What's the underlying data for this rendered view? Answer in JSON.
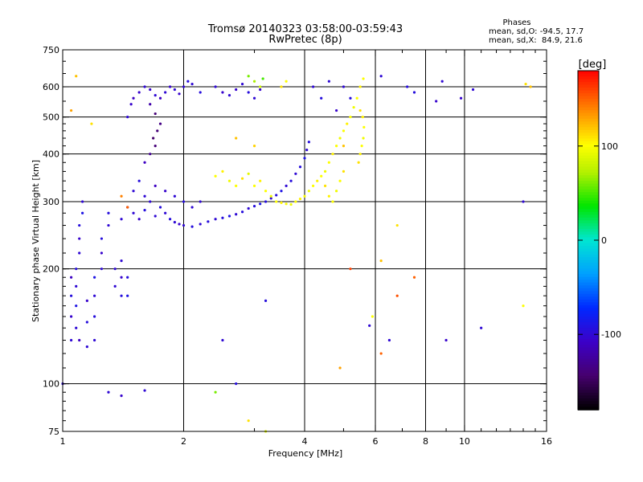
{
  "chart_data": {
    "type": "scatter",
    "title": "Tromsø 20140323 03:58:00-03:59:43",
    "subtitle": "RwPretec (8p)",
    "xlabel": "Frequency [MHz]",
    "ylabel": "Stationary phase Virtual Height [km]",
    "x_scale": "log",
    "y_scale": "log",
    "xlim": [
      1,
      16
    ],
    "ylim": [
      75,
      750
    ],
    "x_ticks": [
      1,
      2,
      4,
      6,
      8,
      10,
      16
    ],
    "x_tick_labels": [
      "1",
      "2",
      "4",
      "6",
      "8",
      "10",
      "16"
    ],
    "x_minor_ticks": [
      3,
      5,
      7,
      9,
      11,
      12,
      13,
      14,
      15
    ],
    "y_ticks": [
      75,
      100,
      200,
      300,
      400,
      500,
      600,
      750
    ],
    "y_tick_labels": [
      "75",
      "100",
      "200",
      "300",
      "400",
      "500",
      "600",
      "750"
    ],
    "grid": true,
    "phase_stats": {
      "heading": "Phases",
      "o_line": "mean, sd,O: -94.5, 17.7",
      "x_line": "mean, sd,X:  84.9, 21.6"
    },
    "colorbar": {
      "label": "[deg]",
      "range": [
        -180,
        180
      ],
      "ticks": [
        100,
        0,
        -100
      ],
      "tick_labels": [
        "100",
        "0",
        "-100"
      ]
    },
    "series": [
      {
        "component": "O-mode",
        "points": [
          [
            1.05,
            130,
            -100
          ],
          [
            1.05,
            150,
            -105
          ],
          [
            1.05,
            170,
            -95
          ],
          [
            1.05,
            190,
            -110
          ],
          [
            1.08,
            140,
            -100
          ],
          [
            1.08,
            160,
            -90
          ],
          [
            1.08,
            180,
            -100
          ],
          [
            1.08,
            200,
            -95
          ],
          [
            1.1,
            220,
            -100
          ],
          [
            1.1,
            240,
            -105
          ],
          [
            1.1,
            260,
            -95
          ],
          [
            1.12,
            280,
            -90
          ],
          [
            1.12,
            300,
            -100
          ],
          [
            1.1,
            130,
            -110
          ],
          [
            1.15,
            125,
            -100
          ],
          [
            1.15,
            145,
            -95
          ],
          [
            1.15,
            165,
            -105
          ],
          [
            1.2,
            130,
            -100
          ],
          [
            1.2,
            150,
            -95
          ],
          [
            1.2,
            170,
            -100
          ],
          [
            1.2,
            190,
            -90
          ],
          [
            1.25,
            200,
            -100
          ],
          [
            1.25,
            220,
            -105
          ],
          [
            1.25,
            240,
            -95
          ],
          [
            1.3,
            260,
            -100
          ],
          [
            1.3,
            280,
            -95
          ],
          [
            1.35,
            200,
            -100
          ],
          [
            1.35,
            180,
            -100
          ],
          [
            1.4,
            170,
            -95
          ],
          [
            1.4,
            190,
            -105
          ],
          [
            1.4,
            210,
            -100
          ],
          [
            1.45,
            170,
            -90
          ],
          [
            1.45,
            190,
            -95
          ],
          [
            1.4,
            270,
            -100
          ],
          [
            1.45,
            290,
            -95
          ],
          [
            1.5,
            280,
            -100
          ],
          [
            1.55,
            270,
            -105
          ],
          [
            1.6,
            285,
            -95
          ],
          [
            1.65,
            300,
            -100
          ],
          [
            1.7,
            275,
            -100
          ],
          [
            1.75,
            290,
            -95
          ],
          [
            1.8,
            280,
            -100
          ],
          [
            1.85,
            270,
            -95
          ],
          [
            1.9,
            265,
            -100
          ],
          [
            1.95,
            262,
            -105
          ],
          [
            2.0,
            260,
            -100
          ],
          [
            2.1,
            258,
            -95
          ],
          [
            2.2,
            262,
            -100
          ],
          [
            2.3,
            266,
            -95
          ],
          [
            2.4,
            270,
            -100
          ],
          [
            2.5,
            272,
            -95
          ],
          [
            2.6,
            275,
            -90
          ],
          [
            2.7,
            278,
            -100
          ],
          [
            2.8,
            282,
            -95
          ],
          [
            2.9,
            288,
            -100
          ],
          [
            3.0,
            292,
            -95
          ],
          [
            3.1,
            296,
            -90
          ],
          [
            3.2,
            300,
            -95
          ],
          [
            3.3,
            306,
            -100
          ],
          [
            3.4,
            312,
            -95
          ],
          [
            3.5,
            320,
            -90
          ],
          [
            3.6,
            330,
            -100
          ],
          [
            3.7,
            340,
            -95
          ],
          [
            3.8,
            355,
            -100
          ],
          [
            3.9,
            370,
            -95
          ],
          [
            4.0,
            390,
            -90
          ],
          [
            4.05,
            410,
            -100
          ],
          [
            4.1,
            430,
            -95
          ],
          [
            1.5,
            320,
            -100
          ],
          [
            1.55,
            340,
            -95
          ],
          [
            1.6,
            310,
            -100
          ],
          [
            1.7,
            330,
            -110
          ],
          [
            1.8,
            320,
            -105
          ],
          [
            1.9,
            310,
            -100
          ],
          [
            2.0,
            300,
            -95
          ],
          [
            2.1,
            290,
            -100
          ],
          [
            2.2,
            300,
            -100
          ],
          [
            1.6,
            380,
            -110
          ],
          [
            1.65,
            400,
            -130
          ],
          [
            1.7,
            420,
            -140
          ],
          [
            1.68,
            440,
            -145
          ],
          [
            1.72,
            460,
            -140
          ],
          [
            1.75,
            480,
            -135
          ],
          [
            1.7,
            510,
            -140
          ],
          [
            1.65,
            540,
            -120
          ],
          [
            1.5,
            560,
            -110
          ],
          [
            1.55,
            580,
            -105
          ],
          [
            1.6,
            600,
            -100
          ],
          [
            1.65,
            590,
            -105
          ],
          [
            1.7,
            570,
            -100
          ],
          [
            1.75,
            560,
            -110
          ],
          [
            1.8,
            580,
            -100
          ],
          [
            1.85,
            600,
            -105
          ],
          [
            1.9,
            590,
            -100
          ],
          [
            1.95,
            575,
            -105
          ],
          [
            2.0,
            600,
            -100
          ],
          [
            2.05,
            620,
            -95
          ],
          [
            2.1,
            610,
            -100
          ],
          [
            2.2,
            580,
            -95
          ],
          [
            2.4,
            600,
            -100
          ],
          [
            2.5,
            580,
            -105
          ],
          [
            2.6,
            570,
            -100
          ],
          [
            2.7,
            590,
            -105
          ],
          [
            2.8,
            610,
            -100
          ],
          [
            2.9,
            580,
            -95
          ],
          [
            3.0,
            560,
            -100
          ],
          [
            3.1,
            590,
            -105
          ],
          [
            1.45,
            500,
            -100
          ],
          [
            1.48,
            540,
            -105
          ],
          [
            4.2,
            600,
            -100
          ],
          [
            4.4,
            560,
            -95
          ],
          [
            4.6,
            620,
            -100
          ],
          [
            4.8,
            520,
            -105
          ],
          [
            5.0,
            600,
            -100
          ],
          [
            5.2,
            560,
            -95
          ],
          [
            6.2,
            640,
            -100
          ],
          [
            7.2,
            600,
            -95
          ],
          [
            8.8,
            620,
            -100
          ],
          [
            9.8,
            560,
            -105
          ],
          [
            10.5,
            590,
            -100
          ],
          [
            7.5,
            580,
            -95
          ],
          [
            8.5,
            550,
            -105
          ],
          [
            14.0,
            300,
            -100
          ],
          [
            1.0,
            100,
            -100
          ],
          [
            1.3,
            95,
            -100
          ],
          [
            1.4,
            93,
            -105
          ],
          [
            1.6,
            96,
            -100
          ],
          [
            2.5,
            130,
            -100
          ],
          [
            2.7,
            100,
            -95
          ],
          [
            3.2,
            165,
            -95
          ],
          [
            5.8,
            142,
            -100
          ],
          [
            6.5,
            130,
            -100
          ],
          [
            9.0,
            130,
            -105
          ],
          [
            11.0,
            140,
            -100
          ]
        ]
      },
      {
        "component": "X-mode",
        "points": [
          [
            2.4,
            350,
            100
          ],
          [
            2.5,
            360,
            105
          ],
          [
            2.6,
            340,
            95
          ],
          [
            2.7,
            330,
            100
          ],
          [
            2.8,
            345,
            110
          ],
          [
            2.9,
            355,
            90
          ],
          [
            3.0,
            330,
            100
          ],
          [
            3.1,
            340,
            105
          ],
          [
            3.2,
            320,
            100
          ],
          [
            3.3,
            310,
            95
          ],
          [
            3.4,
            300,
            100
          ],
          [
            3.5,
            298,
            105
          ],
          [
            3.6,
            296,
            100
          ],
          [
            3.7,
            295,
            95
          ],
          [
            3.8,
            300,
            100
          ],
          [
            3.9,
            305,
            105
          ],
          [
            4.0,
            310,
            100
          ],
          [
            4.1,
            320,
            95
          ],
          [
            4.2,
            330,
            100
          ],
          [
            4.3,
            340,
            105
          ],
          [
            4.4,
            350,
            100
          ],
          [
            4.5,
            360,
            95
          ],
          [
            4.6,
            380,
            100
          ],
          [
            4.7,
            400,
            105
          ],
          [
            4.8,
            420,
            100
          ],
          [
            4.9,
            440,
            95
          ],
          [
            5.0,
            460,
            100
          ],
          [
            5.1,
            480,
            105
          ],
          [
            5.2,
            500,
            100
          ],
          [
            5.3,
            530,
            95
          ],
          [
            5.4,
            560,
            100
          ],
          [
            5.5,
            600,
            105
          ],
          [
            5.6,
            630,
            100
          ],
          [
            5.45,
            380,
            110
          ],
          [
            5.5,
            400,
            105
          ],
          [
            5.55,
            420,
            100
          ],
          [
            5.6,
            440,
            95
          ],
          [
            5.62,
            470,
            100
          ],
          [
            5.58,
            500,
            105
          ],
          [
            5.5,
            520,
            110
          ],
          [
            4.5,
            330,
            110
          ],
          [
            4.6,
            310,
            105
          ],
          [
            4.7,
            300,
            100
          ],
          [
            4.8,
            320,
            95
          ],
          [
            4.9,
            340,
            100
          ],
          [
            5.0,
            360,
            110
          ],
          [
            2.9,
            640,
            60
          ],
          [
            3.0,
            620,
            70
          ],
          [
            3.1,
            600,
            80
          ],
          [
            3.15,
            630,
            50
          ],
          [
            3.5,
            600,
            110
          ],
          [
            3.6,
            620,
            100
          ],
          [
            1.08,
            640,
            120
          ],
          [
            1.18,
            480,
            110
          ],
          [
            1.4,
            310,
            140
          ],
          [
            1.45,
            290,
            150
          ],
          [
            1.05,
            520,
            130
          ],
          [
            3.0,
            420,
            115
          ],
          [
            2.7,
            440,
            120
          ],
          [
            7.5,
            190,
            150
          ],
          [
            6.2,
            210,
            120
          ],
          [
            5.2,
            200,
            160
          ],
          [
            5.0,
            420,
            120
          ],
          [
            6.8,
            170,
            155
          ],
          [
            2.4,
            95,
            60
          ],
          [
            2.9,
            80,
            110
          ],
          [
            14.2,
            610,
            110
          ],
          [
            14.6,
            600,
            120
          ],
          [
            6.2,
            120,
            150
          ],
          [
            4.9,
            110,
            130
          ],
          [
            5.9,
            150,
            100
          ],
          [
            3.2,
            75,
            90
          ],
          [
            14.0,
            160,
            100
          ],
          [
            6.8,
            260,
            110
          ]
        ]
      }
    ]
  }
}
